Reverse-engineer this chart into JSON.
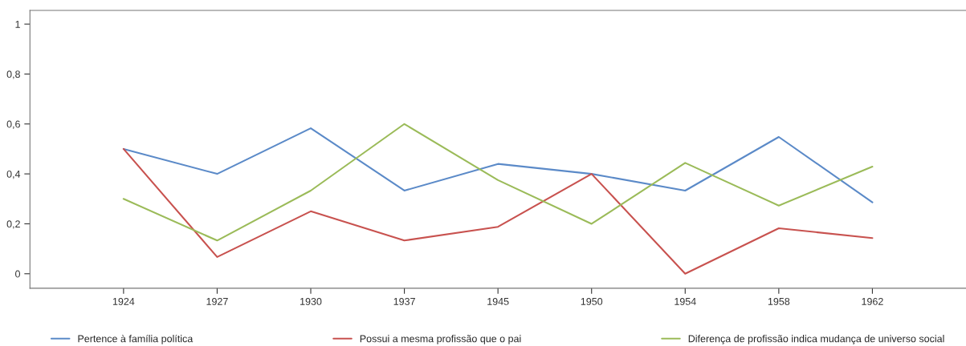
{
  "chart_data": {
    "type": "line",
    "categories": [
      "1924",
      "1927",
      "1930",
      "1937",
      "1945",
      "1950",
      "1954",
      "1958",
      "1962"
    ],
    "series": [
      {
        "name": "Pertence à família política",
        "color": "#5b8ac8",
        "values": [
          0.5,
          0.4,
          0.583,
          0.333,
          0.44,
          0.4,
          0.333,
          0.548,
          0.286
        ]
      },
      {
        "name": "Possui a mesma profissão que o pai",
        "color": "#c8524f",
        "values": [
          0.5,
          0.067,
          0.25,
          0.133,
          0.188,
          0.4,
          0,
          0.182,
          0.143
        ]
      },
      {
        "name": "Diferença de profissão indica mudança de universo social",
        "color": "#9bbb59",
        "values": [
          0.3,
          0.133,
          0.333,
          0.6,
          0.375,
          0.2,
          0.444,
          0.273,
          0.429
        ]
      }
    ],
    "ylim": [
      -0.058,
      1.055
    ],
    "yticks": [
      0,
      {
        "value": 0.2,
        "label": "0,2"
      },
      {
        "value": 0.4,
        "label": "0,4"
      },
      {
        "value": 0.6,
        "label": "0,6"
      },
      {
        "value": 0.8,
        "label": "0,8"
      },
      1
    ],
    "grid": false,
    "legend": "bottom",
    "marker": "none",
    "line_style": "solid"
  }
}
